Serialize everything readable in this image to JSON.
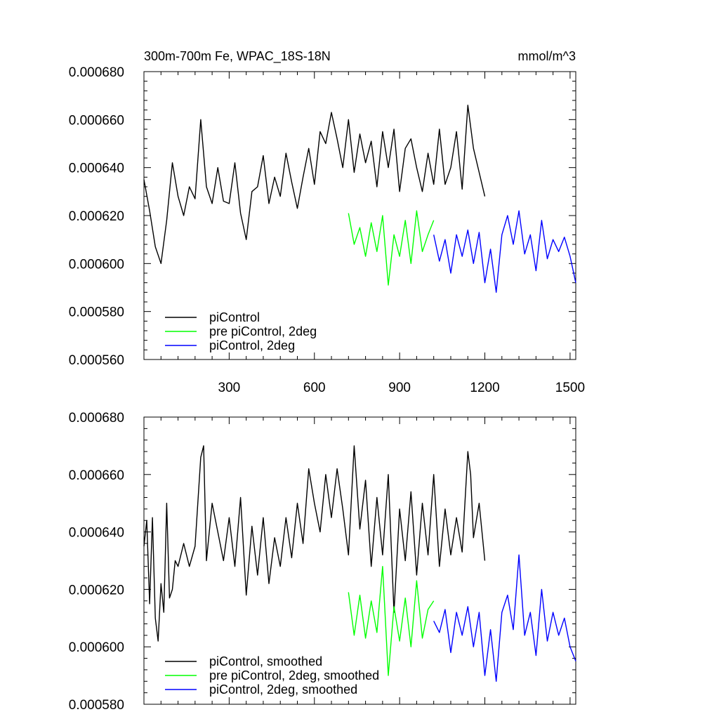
{
  "chart_data": [
    {
      "type": "line",
      "title": "300m-700m Fe, WPAC_18S-18N",
      "units": "mmol/m^3",
      "xlim": [
        0,
        1520
      ],
      "ylim": [
        0.00056,
        0.00068
      ],
      "x_ticks": [
        300,
        600,
        900,
        1200,
        1500
      ],
      "x_tick_labels": [
        "300",
        "600",
        "900",
        "1200",
        "1500"
      ],
      "y_ticks": [
        0.00056,
        0.00058,
        0.0006,
        0.00062,
        0.00064,
        0.00066,
        0.00068
      ],
      "y_tick_labels": [
        "0.000560",
        "0.000580",
        "0.000600",
        "0.000620",
        "0.000640",
        "0.000660",
        "0.000680"
      ],
      "legend_location": "bottom-left",
      "series": [
        {
          "name": "piControl",
          "color": "#000000",
          "x": [
            0,
            20,
            40,
            60,
            80,
            100,
            120,
            140,
            160,
            180,
            200,
            220,
            240,
            260,
            280,
            300,
            320,
            340,
            360,
            380,
            400,
            420,
            440,
            460,
            480,
            500,
            520,
            540,
            560,
            580,
            600,
            620,
            640,
            660,
            680,
            700,
            720,
            740,
            760,
            780,
            800,
            820,
            840,
            860,
            880,
            900,
            920,
            940,
            960,
            980,
            1000,
            1020,
            1040,
            1060,
            1080,
            1100,
            1120,
            1140,
            1160,
            1180,
            1200
          ],
          "values": [
            0.000635,
            0.000622,
            0.000607,
            0.0006,
            0.000618,
            0.000642,
            0.000628,
            0.00062,
            0.000632,
            0.000627,
            0.00066,
            0.000632,
            0.000625,
            0.00064,
            0.000626,
            0.000625,
            0.000642,
            0.000621,
            0.00061,
            0.00063,
            0.000632,
            0.000645,
            0.000625,
            0.000636,
            0.000628,
            0.000646,
            0.000634,
            0.000623,
            0.000636,
            0.000648,
            0.000633,
            0.000655,
            0.00065,
            0.000663,
            0.000652,
            0.00064,
            0.00066,
            0.000638,
            0.000654,
            0.000642,
            0.000651,
            0.000632,
            0.000655,
            0.00064,
            0.000656,
            0.00063,
            0.000648,
            0.000652,
            0.00064,
            0.00063,
            0.000646,
            0.000633,
            0.000656,
            0.000633,
            0.00064,
            0.000655,
            0.000631,
            0.000666,
            0.000648,
            0.000638,
            0.000628
          ]
        },
        {
          "name": "pre piControl, 2deg",
          "color": "#00ff00",
          "x": [
            720,
            740,
            760,
            780,
            800,
            820,
            840,
            860,
            880,
            900,
            920,
            940,
            960,
            980,
            1000,
            1020
          ],
          "values": [
            0.000621,
            0.000608,
            0.000615,
            0.000603,
            0.000617,
            0.000605,
            0.00062,
            0.000591,
            0.000612,
            0.000603,
            0.000618,
            0.0006,
            0.000622,
            0.000605,
            0.000612,
            0.000618
          ]
        },
        {
          "name": "piControl, 2deg",
          "color": "#0000ff",
          "x": [
            1020,
            1040,
            1060,
            1080,
            1100,
            1120,
            1140,
            1160,
            1180,
            1200,
            1220,
            1240,
            1260,
            1280,
            1300,
            1320,
            1340,
            1360,
            1380,
            1400,
            1420,
            1440,
            1460,
            1480,
            1500,
            1520
          ],
          "values": [
            0.000612,
            0.000601,
            0.00061,
            0.000596,
            0.000612,
            0.000603,
            0.000614,
            0.0006,
            0.000613,
            0.000592,
            0.000606,
            0.000588,
            0.000612,
            0.00062,
            0.000608,
            0.000622,
            0.000604,
            0.000612,
            0.000597,
            0.000618,
            0.000602,
            0.00061,
            0.000605,
            0.000611,
            0.000603,
            0.000592
          ]
        }
      ]
    },
    {
      "type": "line",
      "title": "",
      "xlim": [
        0,
        1520
      ],
      "ylim": [
        0.00058,
        0.00068
      ],
      "x_ticks": [
        300,
        600,
        900,
        1200,
        1500
      ],
      "x_tick_labels": [],
      "y_ticks": [
        0.00058,
        0.0006,
        0.00062,
        0.00064,
        0.00066,
        0.00068
      ],
      "y_tick_labels": [
        "0.000580",
        "0.000600",
        "0.000620",
        "0.000640",
        "0.000660",
        "0.000680"
      ],
      "legend_location": "bottom-left",
      "series": [
        {
          "name": "piControl, smoothed",
          "color": "#000000",
          "x": [
            0,
            10,
            20,
            30,
            40,
            50,
            60,
            70,
            80,
            90,
            100,
            110,
            120,
            140,
            160,
            180,
            200,
            210,
            220,
            240,
            260,
            280,
            300,
            320,
            340,
            360,
            380,
            400,
            420,
            440,
            460,
            480,
            500,
            520,
            540,
            560,
            580,
            600,
            620,
            640,
            660,
            680,
            700,
            720,
            740,
            760,
            780,
            800,
            820,
            840,
            860,
            880,
            900,
            920,
            940,
            960,
            980,
            1000,
            1020,
            1040,
            1060,
            1080,
            1100,
            1120,
            1140,
            1150,
            1160,
            1180,
            1200
          ],
          "values": [
            0.000635,
            0.000644,
            0.000615,
            0.000645,
            0.00061,
            0.000602,
            0.000622,
            0.000612,
            0.00065,
            0.000617,
            0.00062,
            0.00063,
            0.000628,
            0.000636,
            0.000628,
            0.000635,
            0.000666,
            0.00067,
            0.00063,
            0.00065,
            0.00064,
            0.00063,
            0.000645,
            0.000628,
            0.000652,
            0.000618,
            0.000642,
            0.000625,
            0.000645,
            0.000622,
            0.000638,
            0.000628,
            0.000645,
            0.000631,
            0.00065,
            0.000636,
            0.000662,
            0.00065,
            0.00064,
            0.00066,
            0.000645,
            0.000662,
            0.000648,
            0.000632,
            0.00067,
            0.000641,
            0.000658,
            0.000628,
            0.000652,
            0.000632,
            0.00066,
            0.000612,
            0.000648,
            0.00063,
            0.000654,
            0.000625,
            0.00065,
            0.000632,
            0.00066,
            0.000628,
            0.000648,
            0.000632,
            0.000645,
            0.000633,
            0.000668,
            0.00066,
            0.000638,
            0.00065,
            0.00063
          ]
        },
        {
          "name": "pre piControl, 2deg, smoothed",
          "color": "#00ff00",
          "x": [
            720,
            740,
            760,
            780,
            800,
            820,
            840,
            860,
            880,
            900,
            920,
            940,
            960,
            980,
            1000,
            1020
          ],
          "values": [
            0.000619,
            0.000604,
            0.000618,
            0.000603,
            0.000616,
            0.000605,
            0.000628,
            0.00059,
            0.000614,
            0.000602,
            0.000617,
            0.0006,
            0.000623,
            0.000603,
            0.000613,
            0.000616
          ]
        },
        {
          "name": "piControl, 2deg, smoothed",
          "color": "#0000ff",
          "x": [
            1020,
            1040,
            1060,
            1080,
            1100,
            1120,
            1140,
            1160,
            1180,
            1200,
            1220,
            1240,
            1260,
            1280,
            1300,
            1320,
            1340,
            1360,
            1380,
            1400,
            1420,
            1440,
            1460,
            1480,
            1500,
            1520
          ],
          "values": [
            0.000609,
            0.000605,
            0.000613,
            0.000598,
            0.000612,
            0.000604,
            0.000614,
            0.0006,
            0.000612,
            0.00059,
            0.000606,
            0.000588,
            0.000612,
            0.000618,
            0.000606,
            0.000632,
            0.000604,
            0.000612,
            0.000597,
            0.00062,
            0.000602,
            0.000612,
            0.000604,
            0.00061,
            0.0006,
            0.000595
          ]
        }
      ]
    }
  ]
}
